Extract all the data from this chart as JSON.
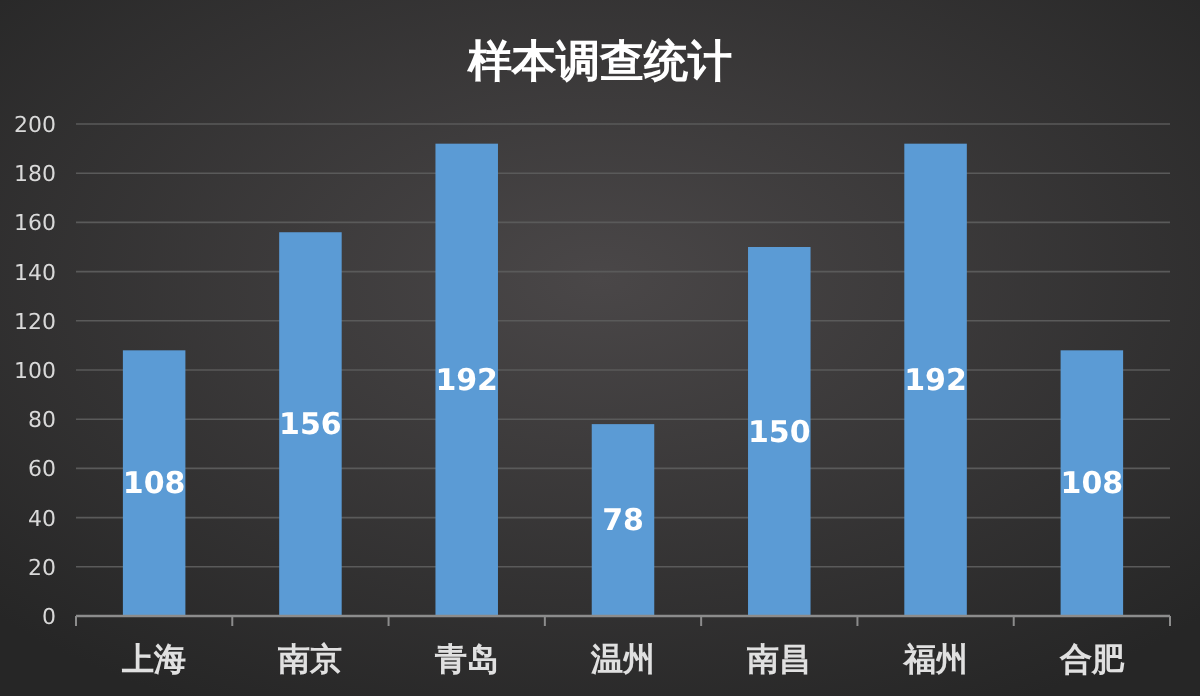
{
  "chart_data": {
    "type": "bar",
    "title": "样本调查统计",
    "categories": [
      "上海",
      "南京",
      "青岛",
      "温州",
      "南昌",
      "福州",
      "合肥"
    ],
    "values": [
      108,
      156,
      192,
      78,
      150,
      192,
      108
    ],
    "color": "#5b9bd5",
    "ylim": [
      0,
      200
    ],
    "yticks": [
      0,
      20,
      40,
      60,
      80,
      100,
      120,
      140,
      160,
      180,
      200
    ],
    "grid": "y",
    "data_labels": true
  }
}
